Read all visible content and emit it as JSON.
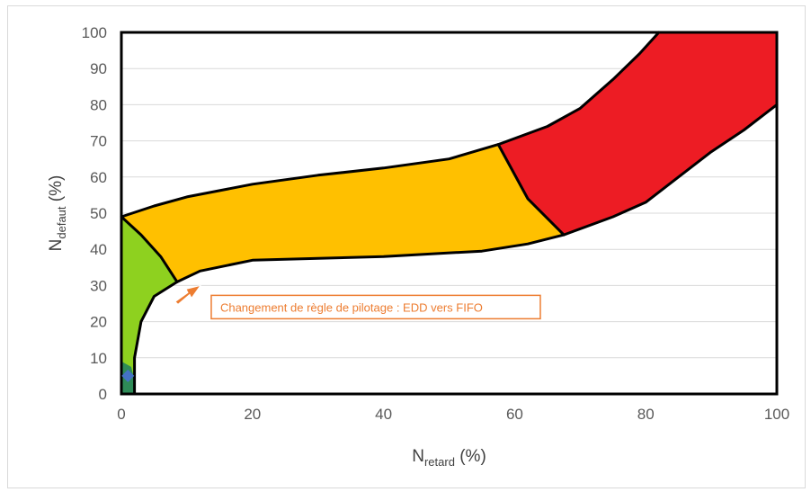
{
  "chart_data": {
    "type": "area",
    "xlabel": {
      "main": "N",
      "sub": "retard",
      "unit": " (%)"
    },
    "ylabel": {
      "main": "N",
      "sub": "defaut",
      "unit": " (%)"
    },
    "xlim": [
      0,
      100
    ],
    "ylim": [
      0,
      100
    ],
    "xticks": [
      "0",
      "20",
      "40",
      "60",
      "80",
      "100"
    ],
    "yticks": [
      "0",
      "10",
      "20",
      "30",
      "40",
      "50",
      "60",
      "70",
      "80",
      "90",
      "100"
    ],
    "grid": true,
    "regions": [
      {
        "color": "#8ed11f",
        "points": [
          [
            0,
            49
          ],
          [
            3,
            44
          ],
          [
            6,
            38
          ],
          [
            8.5,
            31
          ],
          [
            5,
            27
          ],
          [
            3,
            20
          ],
          [
            2,
            10
          ],
          [
            2,
            0
          ],
          [
            0,
            0
          ]
        ]
      },
      {
        "color": "#ffc000",
        "points": [
          [
            0,
            49
          ],
          [
            5,
            52
          ],
          [
            10,
            54.5
          ],
          [
            20,
            58
          ],
          [
            30,
            60.5
          ],
          [
            40,
            62.5
          ],
          [
            50,
            65
          ],
          [
            57.5,
            69
          ],
          [
            62,
            54
          ],
          [
            67.5,
            44
          ],
          [
            62,
            41.5
          ],
          [
            55,
            39.5
          ],
          [
            40,
            38
          ],
          [
            30,
            37.5
          ],
          [
            20,
            37
          ],
          [
            12,
            34
          ],
          [
            8.5,
            31
          ],
          [
            6,
            38
          ],
          [
            3,
            44
          ]
        ]
      },
      {
        "color": "#ed1c24",
        "points": [
          [
            57.5,
            69
          ],
          [
            65,
            74
          ],
          [
            70,
            79
          ],
          [
            75,
            87
          ],
          [
            79,
            94
          ],
          [
            82,
            100
          ],
          [
            100,
            100
          ],
          [
            100,
            80
          ],
          [
            95,
            73
          ],
          [
            90,
            67
          ],
          [
            85,
            60
          ],
          [
            80,
            53
          ],
          [
            75,
            49
          ],
          [
            67.5,
            44
          ],
          [
            62,
            54
          ]
        ]
      },
      {
        "color": "#2e8b57",
        "points": [
          [
            0,
            0
          ],
          [
            0,
            9
          ],
          [
            1.5,
            7.5
          ],
          [
            2,
            4
          ],
          [
            2,
            0
          ]
        ]
      }
    ],
    "boundaries": [
      {
        "points": [
          [
            0,
            49
          ],
          [
            5,
            52
          ],
          [
            10,
            54.5
          ],
          [
            20,
            58
          ],
          [
            30,
            60.5
          ],
          [
            40,
            62.5
          ],
          [
            50,
            65
          ],
          [
            57.5,
            69
          ],
          [
            65,
            74
          ],
          [
            70,
            79
          ],
          [
            75,
            87
          ],
          [
            79,
            94
          ],
          [
            82,
            100
          ]
        ]
      },
      {
        "points": [
          [
            2,
            0
          ],
          [
            2,
            10
          ],
          [
            3,
            20
          ],
          [
            5,
            27
          ],
          [
            8.5,
            31
          ],
          [
            12,
            34
          ],
          [
            20,
            37
          ],
          [
            30,
            37.5
          ],
          [
            40,
            38
          ],
          [
            55,
            39.5
          ],
          [
            62,
            41.5
          ],
          [
            67.5,
            44
          ],
          [
            75,
            49
          ],
          [
            80,
            53
          ],
          [
            85,
            60
          ],
          [
            90,
            67
          ],
          [
            95,
            73
          ],
          [
            100,
            80
          ]
        ]
      },
      {
        "points": [
          [
            0,
            49
          ],
          [
            3,
            44
          ],
          [
            6,
            38
          ],
          [
            8.5,
            31
          ]
        ]
      },
      {
        "points": [
          [
            57.5,
            69
          ],
          [
            62,
            54
          ],
          [
            67.5,
            44
          ]
        ]
      }
    ],
    "points": [
      {
        "x": 1,
        "y": 5,
        "color": "#4472c4"
      }
    ],
    "annotation": {
      "text": "Changement de règle de pilotage : EDD vers FIFO",
      "target": [
        8.5,
        31
      ],
      "color": "#ed7d31"
    }
  }
}
